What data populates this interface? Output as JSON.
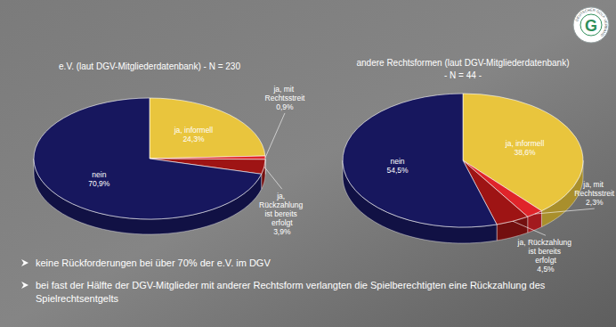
{
  "chart_data": [
    {
      "type": "pie",
      "title": "e.V. (laut DGV-Mitgliederdatenbank) - N = 230",
      "categories": [
        "ja, informell",
        "ja, mit Rechtsstreit",
        "ja, Rückzahlung ist bereits erfolgt",
        "nein"
      ],
      "values": [
        24.3,
        0.9,
        3.9,
        70.9
      ],
      "value_labels": [
        "24,3%",
        "0,9%",
        "3,9%",
        "70,9%"
      ],
      "colors": [
        "#e9c53d",
        "#e0242a",
        "#9e1414",
        "#17175e"
      ],
      "data_labels": true
    },
    {
      "type": "pie",
      "title": "andere Rechtsformen (laut DGV-Mitgliederdatenbank)",
      "subtitle": "- N = 44 -",
      "categories": [
        "ja, informell",
        "ja, mit Rechtsstreit",
        "ja, Rückzahlung ist bereits erfolgt",
        "nein"
      ],
      "values": [
        38.6,
        2.3,
        4.5,
        54.5
      ],
      "value_labels": [
        "38,6%",
        "2,3%",
        "4,5%",
        "54,5%"
      ],
      "colors": [
        "#e9c53d",
        "#e0242a",
        "#9e1414",
        "#17175e"
      ],
      "data_labels": true
    }
  ],
  "bullets": [
    "keine Rückforderungen bei über 70% der e.V. im DGV",
    "bei fast der Hälfte der DGV-Mitglieder mit anderer Rechtsform verlangten die Spielberechtigten eine Rückzahlung des Spielrechtsentgelts"
  ],
  "logo": {
    "letter": "G",
    "ring_text": "DEUTSCHER GOLF VERBAND"
  }
}
